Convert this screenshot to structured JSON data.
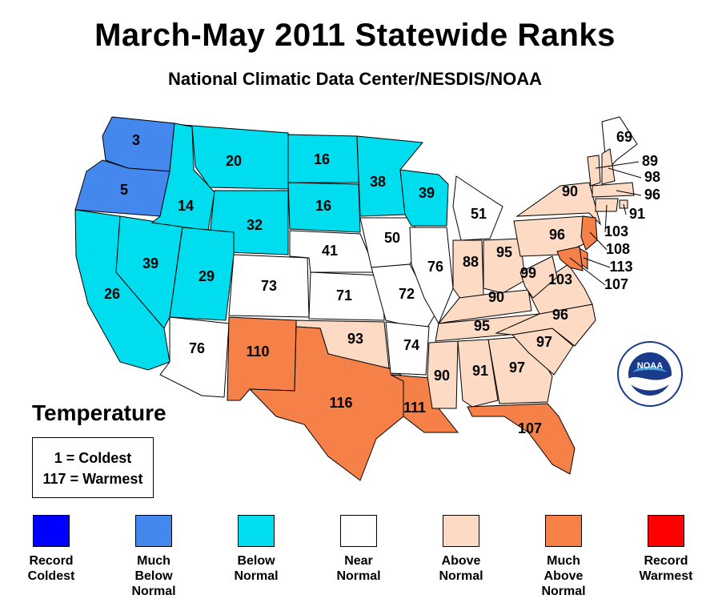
{
  "title": "March-May 2011 Statewide Ranks",
  "subtitle": "National Climatic Data Center/NESDIS/NOAA",
  "colors": {
    "record_coldest": "#0000ff",
    "much_below": "#4488ee",
    "below": "#00ddee",
    "near": "#ffffff",
    "above": "#fcdac4",
    "much_above": "#f58048",
    "record_warmest": "#ff0000"
  },
  "states": [
    {
      "state": "Washington",
      "rank": "3",
      "category": "much_below"
    },
    {
      "state": "Oregon",
      "rank": "5",
      "category": "much_below"
    },
    {
      "state": "California",
      "rank": "26",
      "category": "below"
    },
    {
      "state": "Nevada",
      "rank": "39",
      "category": "below"
    },
    {
      "state": "Idaho",
      "rank": "14",
      "category": "below"
    },
    {
      "state": "Montana",
      "rank": "20",
      "category": "below"
    },
    {
      "state": "Wyoming",
      "rank": "32",
      "category": "below"
    },
    {
      "state": "Utah",
      "rank": "29",
      "category": "below"
    },
    {
      "state": "Arizona",
      "rank": "76",
      "category": "near"
    },
    {
      "state": "Colorado",
      "rank": "73",
      "category": "near"
    },
    {
      "state": "New Mexico",
      "rank": "110",
      "category": "much_above"
    },
    {
      "state": "North Dakota",
      "rank": "16",
      "category": "below"
    },
    {
      "state": "South Dakota",
      "rank": "16",
      "category": "below"
    },
    {
      "state": "Nebraska",
      "rank": "41",
      "category": "near"
    },
    {
      "state": "Kansas",
      "rank": "71",
      "category": "near"
    },
    {
      "state": "Oklahoma",
      "rank": "93",
      "category": "above"
    },
    {
      "state": "Texas",
      "rank": "116",
      "category": "much_above"
    },
    {
      "state": "Minnesota",
      "rank": "38",
      "category": "below"
    },
    {
      "state": "Iowa",
      "rank": "50",
      "category": "near"
    },
    {
      "state": "Missouri",
      "rank": "72",
      "category": "near"
    },
    {
      "state": "Arkansas",
      "rank": "74",
      "category": "near"
    },
    {
      "state": "Louisiana",
      "rank": "111",
      "category": "much_above"
    },
    {
      "state": "Wisconsin",
      "rank": "39",
      "category": "below"
    },
    {
      "state": "Illinois",
      "rank": "76",
      "category": "near"
    },
    {
      "state": "Michigan",
      "rank": "51",
      "category": "near"
    },
    {
      "state": "Indiana",
      "rank": "88",
      "category": "above"
    },
    {
      "state": "Ohio",
      "rank": "95",
      "category": "above"
    },
    {
      "state": "Kentucky",
      "rank": "90",
      "category": "above"
    },
    {
      "state": "Tennessee",
      "rank": "95",
      "category": "above"
    },
    {
      "state": "Mississippi",
      "rank": "90",
      "category": "above"
    },
    {
      "state": "Alabama",
      "rank": "91",
      "category": "above"
    },
    {
      "state": "Georgia",
      "rank": "97",
      "category": "above"
    },
    {
      "state": "Florida",
      "rank": "107",
      "category": "much_above"
    },
    {
      "state": "South Carolina",
      "rank": "97",
      "category": "above"
    },
    {
      "state": "North Carolina",
      "rank": "96",
      "category": "above"
    },
    {
      "state": "Virginia",
      "rank": "103",
      "category": "above"
    },
    {
      "state": "West Virginia",
      "rank": "99",
      "category": "above"
    },
    {
      "state": "Pennsylvania",
      "rank": "96",
      "category": "above"
    },
    {
      "state": "New York",
      "rank": "90",
      "category": "above"
    },
    {
      "state": "Maine",
      "rank": "69",
      "category": "near"
    },
    {
      "state": "Vermont",
      "rank": "89",
      "category": "above"
    },
    {
      "state": "New Hampshire",
      "rank": "98",
      "category": "above"
    },
    {
      "state": "Massachusetts",
      "rank": "96",
      "category": "above"
    },
    {
      "state": "Rhode Island",
      "rank": "91",
      "category": "above"
    },
    {
      "state": "Connecticut",
      "rank": "103",
      "category": "above"
    },
    {
      "state": "New Jersey",
      "rank": "108",
      "category": "much_above"
    },
    {
      "state": "Delaware",
      "rank": "113",
      "category": "much_above"
    },
    {
      "state": "Maryland",
      "rank": "107",
      "category": "much_above"
    }
  ],
  "temperature_heading": "Temperature",
  "scale": {
    "low": "1 = Coldest",
    "high": "117 = Warmest"
  },
  "legend": [
    {
      "key": "record_coldest",
      "label": "Record\nColdest"
    },
    {
      "key": "much_below",
      "label": "Much\nBelow\nNormal"
    },
    {
      "key": "below",
      "label": "Below\nNormal"
    },
    {
      "key": "near",
      "label": "Near\nNormal"
    },
    {
      "key": "above",
      "label": "Above\nNormal"
    },
    {
      "key": "much_above",
      "label": "Much\nAbove\nNormal"
    },
    {
      "key": "record_warmest",
      "label": "Record\nWarmest"
    }
  ],
  "logo": {
    "text": "NOAA",
    "icon": "noaa-logo-icon"
  }
}
